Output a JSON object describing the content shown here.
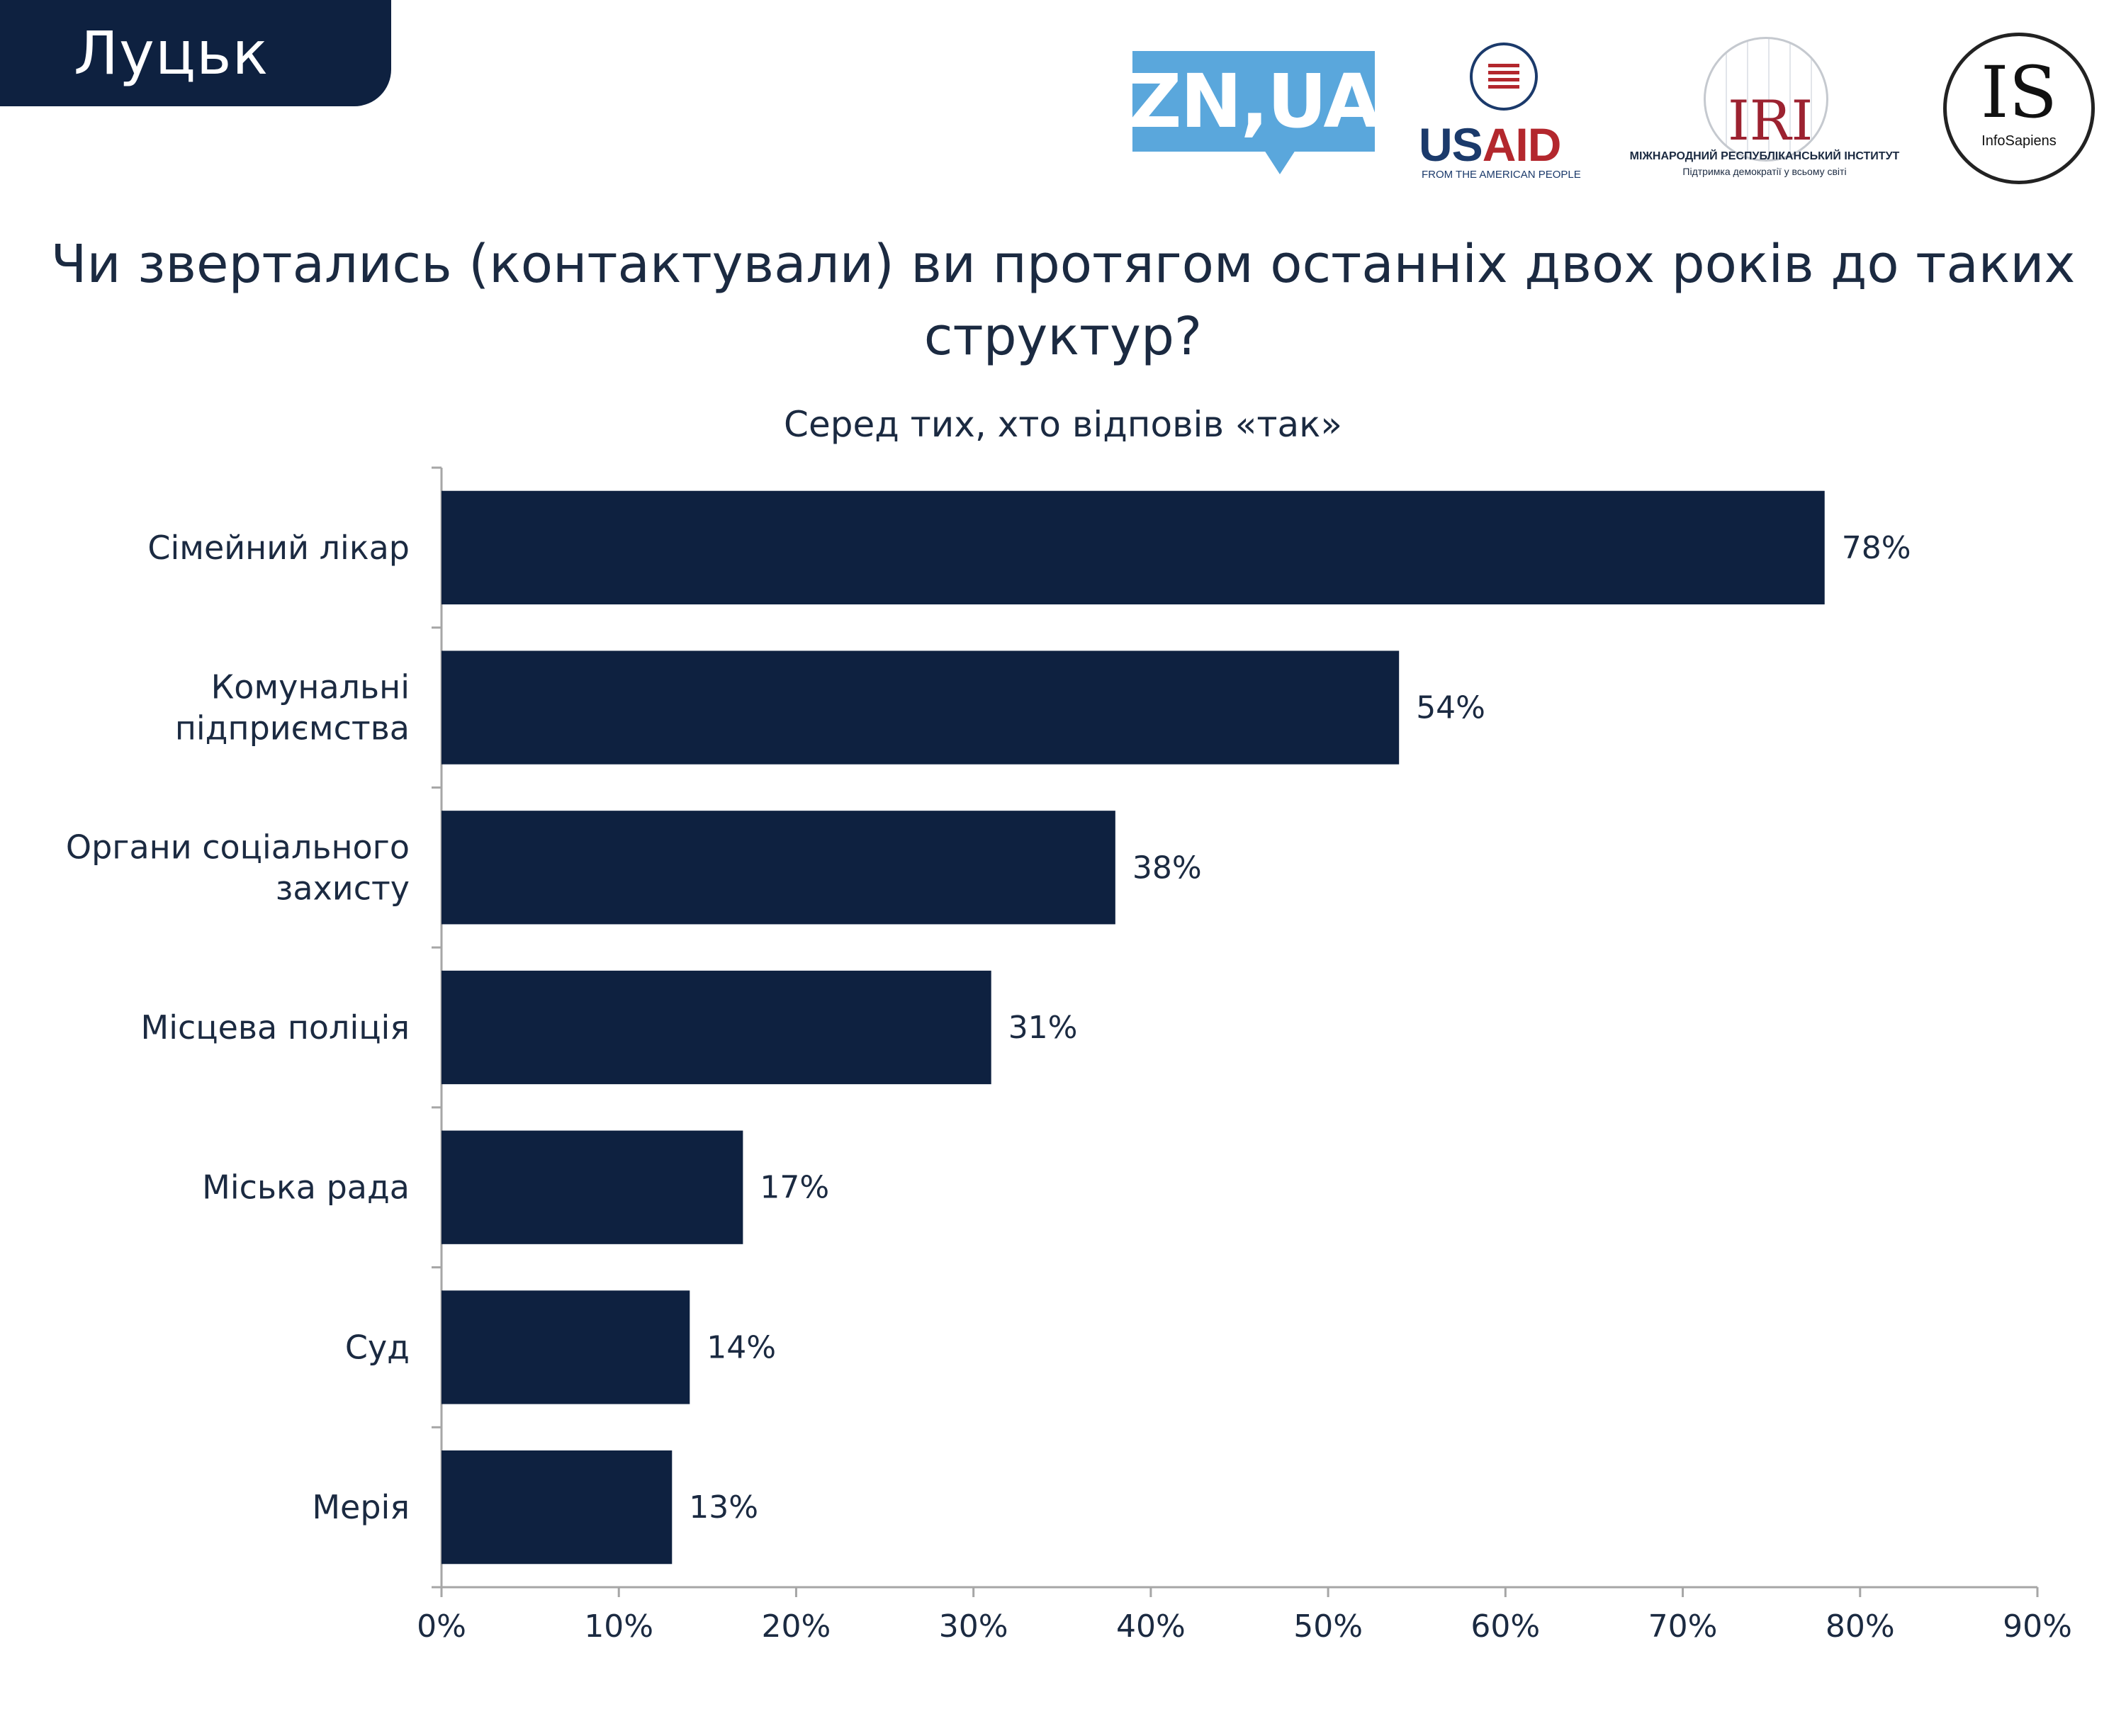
{
  "header": {
    "city": "Луцьк"
  },
  "logos": {
    "zn": {
      "text": "ZN,UA",
      "color": "#5aa7dc"
    },
    "usaid": {
      "us": "US",
      "aid": "AID",
      "tagline": "FROM THE AMERICAN PEOPLE"
    },
    "iri": {
      "text": "IRI",
      "line1": "МІЖНАРОДНИЙ РЕСПУБЛІКАНСЬКИЙ ІНСТИТУТ",
      "line2": "Підтримка демократії у всьому світі"
    },
    "infosapiens": {
      "letters": "IS",
      "name": "InfoSapiens"
    }
  },
  "colors": {
    "bar": "#0e2140",
    "axis": "#a6a6a6",
    "text": "#1b2a41"
  },
  "chart_data": {
    "type": "bar",
    "orientation": "horizontal",
    "title": "Чи звертались (контактували) ви протягом останніх двох років до таких структур?",
    "subtitle": "Серед тих, хто відповів «так»",
    "categories": [
      [
        "Сімейний лікар"
      ],
      [
        "Комунальні",
        "підприємства"
      ],
      [
        "Органи соціального",
        "захисту"
      ],
      [
        "Місцева поліція"
      ],
      [
        "Міська рада"
      ],
      [
        "Суд"
      ],
      [
        "Мерія"
      ]
    ],
    "values": [
      78,
      54,
      38,
      31,
      17,
      14,
      13
    ],
    "value_labels": [
      "78%",
      "54%",
      "38%",
      "31%",
      "17%",
      "14%",
      "13%"
    ],
    "xlim": [
      0,
      90
    ],
    "x_ticks": [
      0,
      10,
      20,
      30,
      40,
      50,
      60,
      70,
      80,
      90
    ],
    "x_tick_labels": [
      "0%",
      "10%",
      "20%",
      "30%",
      "40%",
      "50%",
      "60%",
      "70%",
      "80%",
      "90%"
    ],
    "grid": false,
    "legend": "none"
  }
}
